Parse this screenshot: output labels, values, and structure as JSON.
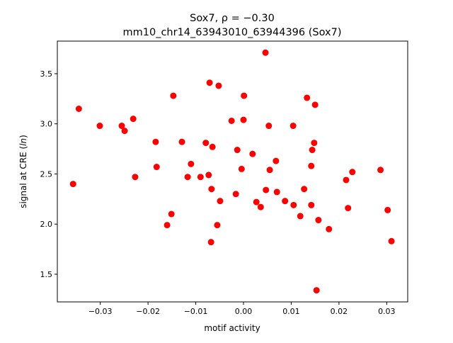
{
  "chart_data": {
    "type": "scatter",
    "title_line1": "Sox7, ρ = −0.30",
    "title_line2": "mm10_chr14_63943010_63944396 (Sox7)",
    "xlabel": "motif activity",
    "ylabel_prefix": "signal at CRE (",
    "ylabel_italic": "ln",
    "ylabel_suffix": ")",
    "xlim": [
      -0.039,
      0.0344
    ],
    "ylim": [
      1.224,
      3.825
    ],
    "xticks": [
      -0.03,
      -0.02,
      -0.01,
      0.0,
      0.01,
      0.02,
      0.03
    ],
    "xtick_labels": [
      "−0.03",
      "−0.02",
      "−0.01",
      "0.00",
      "0.01",
      "0.02",
      "0.03"
    ],
    "yticks": [
      1.5,
      2.0,
      2.5,
      3.0,
      3.5
    ],
    "ytick_labels": [
      "1.5",
      "2.0",
      "2.5",
      "3.0",
      "3.5"
    ],
    "marker_color": "#ff0000",
    "points": [
      [
        -0.0357,
        2.4
      ],
      [
        -0.0345,
        3.15
      ],
      [
        -0.0301,
        2.98
      ],
      [
        -0.0255,
        2.98
      ],
      [
        -0.0249,
        2.93
      ],
      [
        -0.0231,
        3.05
      ],
      [
        -0.0227,
        2.47
      ],
      [
        -0.0184,
        2.82
      ],
      [
        -0.0182,
        2.57
      ],
      [
        -0.016,
        1.99
      ],
      [
        -0.0151,
        2.1
      ],
      [
        -0.0147,
        3.28
      ],
      [
        -0.0129,
        2.82
      ],
      [
        -0.0117,
        2.47
      ],
      [
        -0.011,
        2.6
      ],
      [
        -0.009,
        2.47
      ],
      [
        -0.0079,
        2.81
      ],
      [
        -0.0073,
        2.49
      ],
      [
        -0.0071,
        3.41
      ],
      [
        -0.0068,
        1.82
      ],
      [
        -0.0067,
        2.35
      ],
      [
        -0.0065,
        2.77
      ],
      [
        -0.0055,
        1.99
      ],
      [
        -0.0052,
        3.38
      ],
      [
        -0.0049,
        2.23
      ],
      [
        -0.0025,
        3.03
      ],
      [
        -0.0016,
        2.3
      ],
      [
        -0.0013,
        2.74
      ],
      [
        -0.0004,
        2.55
      ],
      [
        0.0,
        3.04
      ],
      [
        0.0001,
        3.28
      ],
      [
        0.0019,
        2.7
      ],
      [
        0.0027,
        2.22
      ],
      [
        0.0036,
        2.17
      ],
      [
        0.0046,
        3.71
      ],
      [
        0.0047,
        2.34
      ],
      [
        0.0053,
        2.98
      ],
      [
        0.0055,
        2.54
      ],
      [
        0.0068,
        2.63
      ],
      [
        0.007,
        2.32
      ],
      [
        0.0087,
        2.23
      ],
      [
        0.0104,
        2.98
      ],
      [
        0.0105,
        2.19
      ],
      [
        0.0119,
        2.08
      ],
      [
        0.0127,
        2.35
      ],
      [
        0.0133,
        3.26
      ],
      [
        0.0142,
        2.58
      ],
      [
        0.0142,
        2.19
      ],
      [
        0.0144,
        2.74
      ],
      [
        0.0148,
        2.81
      ],
      [
        0.015,
        3.19
      ],
      [
        0.0153,
        1.34
      ],
      [
        0.0157,
        2.04
      ],
      [
        0.0179,
        1.95
      ],
      [
        0.0215,
        2.44
      ],
      [
        0.0219,
        2.16
      ],
      [
        0.0228,
        2.52
      ],
      [
        0.0287,
        2.54
      ],
      [
        0.0302,
        2.14
      ],
      [
        0.031,
        1.83
      ]
    ]
  }
}
